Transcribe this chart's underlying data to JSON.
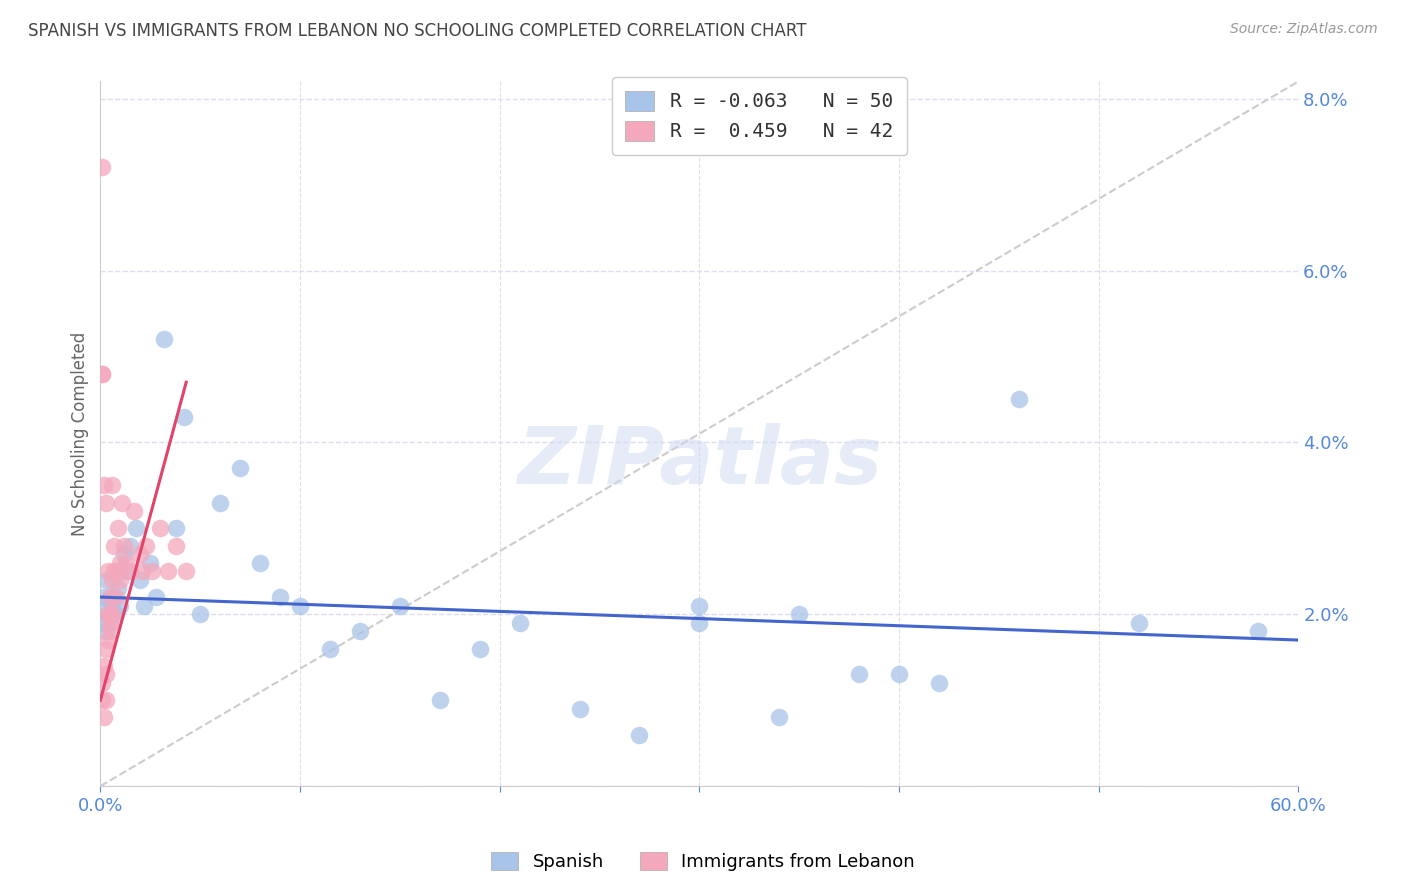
{
  "title": "SPANISH VS IMMIGRANTS FROM LEBANON NO SCHOOLING COMPLETED CORRELATION CHART",
  "source": "Source: ZipAtlas.com",
  "ylabel": "No Schooling Completed",
  "xlim": [
    0,
    0.6
  ],
  "ylim": [
    0,
    0.082
  ],
  "yticks": [
    0.0,
    0.02,
    0.04,
    0.06,
    0.08
  ],
  "blue_R": -0.063,
  "blue_N": 50,
  "pink_R": 0.459,
  "pink_N": 42,
  "blue_color": "#a8c4e8",
  "pink_color": "#f4a8bc",
  "blue_line_color": "#4466cc",
  "pink_line_color": "#e04468",
  "diagonal_color": "#cccccc",
  "grid_color": "#ddddee",
  "background_color": "#ffffff",
  "title_color": "#444444",
  "axis_label_color": "#5588dd",
  "watermark": "ZIPatlas",
  "legend_label_blue": "Spanish",
  "legend_label_pink": "Immigrants from Lebanon",
  "blue_x": [
    0.001,
    0.002,
    0.002,
    0.003,
    0.003,
    0.004,
    0.005,
    0.005,
    0.006,
    0.006,
    0.007,
    0.008,
    0.009,
    0.01,
    0.01,
    0.012,
    0.013,
    0.015,
    0.018,
    0.02,
    0.022,
    0.025,
    0.028,
    0.032,
    0.038,
    0.042,
    0.05,
    0.06,
    0.07,
    0.08,
    0.09,
    0.1,
    0.115,
    0.13,
    0.15,
    0.17,
    0.19,
    0.21,
    0.24,
    0.27,
    0.3,
    0.34,
    0.38,
    0.42,
    0.46,
    0.3,
    0.35,
    0.4,
    0.52,
    0.58
  ],
  "blue_y": [
    0.021,
    0.019,
    0.022,
    0.018,
    0.024,
    0.02,
    0.022,
    0.019,
    0.021,
    0.02,
    0.022,
    0.02,
    0.023,
    0.025,
    0.021,
    0.027,
    0.025,
    0.028,
    0.03,
    0.024,
    0.021,
    0.026,
    0.022,
    0.052,
    0.03,
    0.043,
    0.02,
    0.033,
    0.037,
    0.026,
    0.022,
    0.021,
    0.016,
    0.018,
    0.021,
    0.01,
    0.016,
    0.019,
    0.009,
    0.006,
    0.021,
    0.008,
    0.013,
    0.012,
    0.045,
    0.019,
    0.02,
    0.013,
    0.019,
    0.018
  ],
  "pink_x": [
    0.001,
    0.001,
    0.002,
    0.002,
    0.003,
    0.003,
    0.003,
    0.004,
    0.004,
    0.005,
    0.005,
    0.005,
    0.006,
    0.006,
    0.007,
    0.007,
    0.008,
    0.008,
    0.009,
    0.01,
    0.01,
    0.011,
    0.012,
    0.013,
    0.015,
    0.017,
    0.02,
    0.023,
    0.026,
    0.03,
    0.034,
    0.038,
    0.043,
    0.001,
    0.001,
    0.002,
    0.003,
    0.004,
    0.005,
    0.006,
    0.001,
    0.021
  ],
  "pink_y": [
    0.01,
    0.012,
    0.014,
    0.008,
    0.016,
    0.013,
    0.01,
    0.017,
    0.02,
    0.019,
    0.022,
    0.018,
    0.024,
    0.02,
    0.025,
    0.028,
    0.022,
    0.025,
    0.03,
    0.026,
    0.024,
    0.033,
    0.028,
    0.026,
    0.025,
    0.032,
    0.027,
    0.028,
    0.025,
    0.03,
    0.025,
    0.028,
    0.025,
    0.048,
    0.048,
    0.035,
    0.033,
    0.025,
    0.02,
    0.035,
    0.072,
    0.025
  ],
  "blue_line_x": [
    0.0,
    0.6
  ],
  "blue_line_y": [
    0.022,
    0.017
  ],
  "pink_line_x": [
    0.0,
    0.043
  ],
  "pink_line_y": [
    0.01,
    0.047
  ]
}
